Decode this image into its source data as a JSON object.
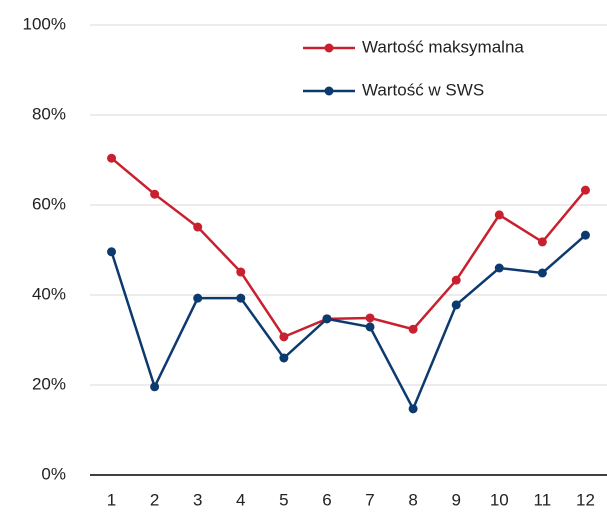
{
  "chart_data": {
    "type": "line",
    "categories": [
      "1",
      "2",
      "3",
      "4",
      "5",
      "6",
      "7",
      "8",
      "9",
      "10",
      "11",
      "12"
    ],
    "series": [
      {
        "name": "Wartość maksymalna",
        "color": "#c8202f",
        "values": [
          70.4,
          62.4,
          55.1,
          45.1,
          30.7,
          34.7,
          34.9,
          32.4,
          43.3,
          57.8,
          51.8,
          63.3
        ]
      },
      {
        "name": "Wartość w SWS",
        "color": "#0d3a6e",
        "values": [
          49.6,
          19.6,
          39.3,
          39.3,
          26,
          34.7,
          32.9,
          14.7,
          37.8,
          46,
          44.9,
          53.3
        ]
      }
    ],
    "ylim": [
      0,
      100
    ],
    "yticks": [
      {
        "value": 0,
        "label": "0%"
      },
      {
        "value": 20,
        "label": "20%"
      },
      {
        "value": 40,
        "label": "40%"
      },
      {
        "value": 60,
        "label": "60%"
      },
      {
        "value": 80,
        "label": "80%"
      },
      {
        "value": 100,
        "label": "100%"
      }
    ],
    "grid": true,
    "legend": "upper right"
  }
}
